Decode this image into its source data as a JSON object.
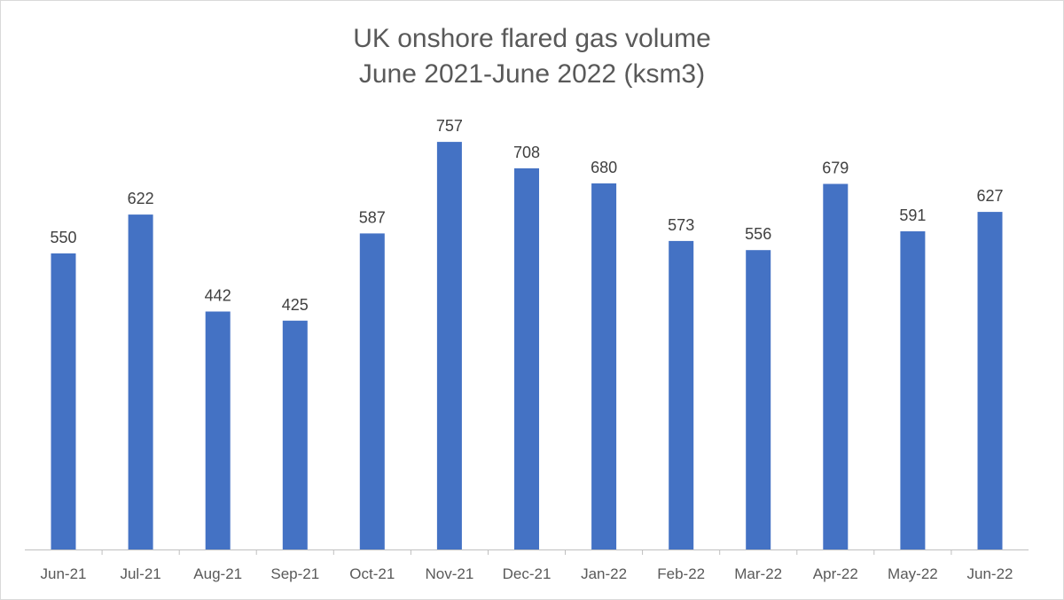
{
  "chart_data": {
    "type": "bar",
    "title": "UK onshore flared gas volume",
    "subtitle": "June 2021-June 2022 (ksm3)",
    "categories": [
      "Jun-21",
      "Jul-21",
      "Aug-21",
      "Sep-21",
      "Oct-21",
      "Nov-21",
      "Dec-21",
      "Jan-22",
      "Feb-22",
      "Mar-22",
      "Apr-22",
      "May-22",
      "Jun-22"
    ],
    "values": [
      550,
      622,
      442,
      425,
      587,
      757,
      708,
      680,
      573,
      556,
      679,
      591,
      627
    ],
    "xlabel": "",
    "ylabel": "",
    "ylim": [
      0,
      800
    ],
    "grid": false,
    "legend": "none",
    "bar_color": "#4472c4",
    "data_labels": true
  }
}
